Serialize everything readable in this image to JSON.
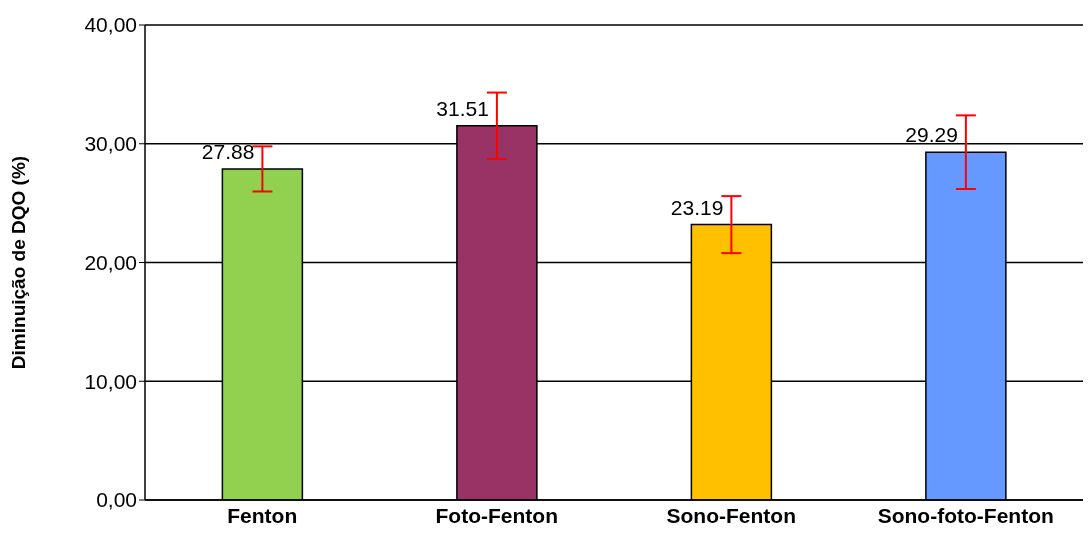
{
  "chart_data": {
    "type": "bar",
    "ylabel": "Diminuição de DQO (%)",
    "categories": [
      "Fenton",
      "Foto-Fenton",
      "Sono-Fenton",
      "Sono-foto-Fenton"
    ],
    "values": [
      27.88,
      31.51,
      23.19,
      29.29
    ],
    "colors": [
      "#92d050",
      "#993366",
      "#ffc000",
      "#6699ff"
    ],
    "errors": [
      1.9,
      2.8,
      2.4,
      3.1
    ],
    "data_labels": true,
    "ylim": [
      0,
      40
    ],
    "yticks": [
      {
        "value": 0,
        "label": "0,00"
      },
      {
        "value": 10,
        "label": "10,00"
      },
      {
        "value": 20,
        "label": "20,00"
      },
      {
        "value": 30,
        "label": "30,00"
      },
      {
        "value": 40,
        "label": "40,00"
      }
    ],
    "grid": "y",
    "legend": false
  }
}
